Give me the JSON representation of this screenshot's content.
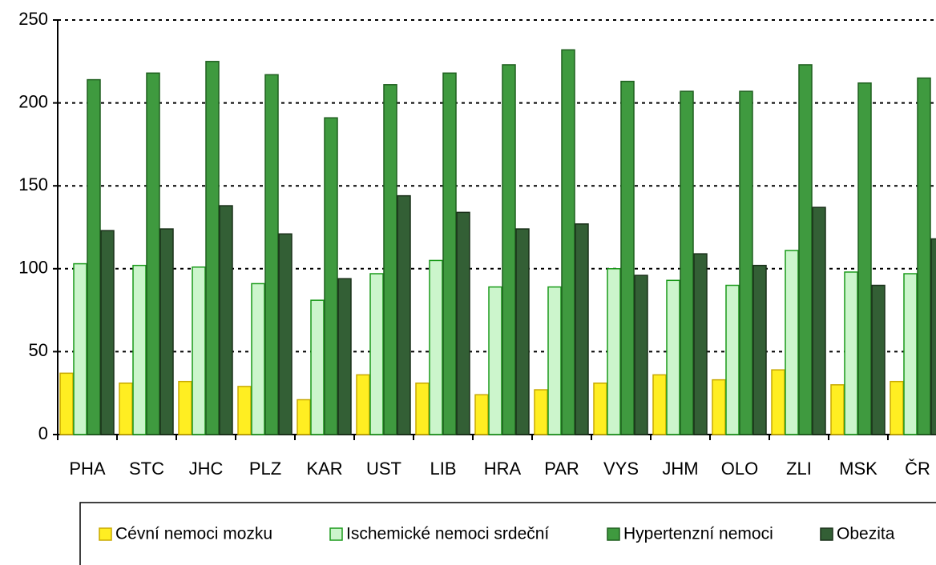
{
  "chart_data": {
    "type": "bar",
    "categories": [
      "PHA",
      "STC",
      "JHC",
      "PLZ",
      "KAR",
      "UST",
      "LIB",
      "HRA",
      "PAR",
      "VYS",
      "JHM",
      "OLO",
      "ZLI",
      "MSK",
      "ČR"
    ],
    "series": [
      {
        "name": "Cévní nemoci mozku",
        "color": "#ffee22",
        "values": [
          37,
          31,
          32,
          29,
          21,
          36,
          31,
          24,
          27,
          31,
          36,
          33,
          39,
          30,
          32
        ]
      },
      {
        "name": "Ischemické nemoci srdeční",
        "color": "#ccf5cc",
        "values": [
          103,
          102,
          101,
          91,
          81,
          97,
          105,
          89,
          89,
          100,
          93,
          90,
          111,
          98,
          97
        ]
      },
      {
        "name": "Hypertenzní nemoci",
        "color": "#3f9a3f",
        "values": [
          214,
          218,
          225,
          217,
          191,
          211,
          218,
          223,
          232,
          213,
          207,
          207,
          223,
          212,
          215
        ]
      },
      {
        "name": "Obezita",
        "color": "#335f35",
        "values": [
          123,
          124,
          138,
          121,
          94,
          144,
          134,
          124,
          127,
          96,
          109,
          102,
          137,
          90,
          118
        ]
      }
    ],
    "ylim": [
      0,
      250
    ],
    "yticks": [
      0,
      50,
      100,
      150,
      200,
      250
    ],
    "grid": true,
    "legend": "bottom"
  }
}
